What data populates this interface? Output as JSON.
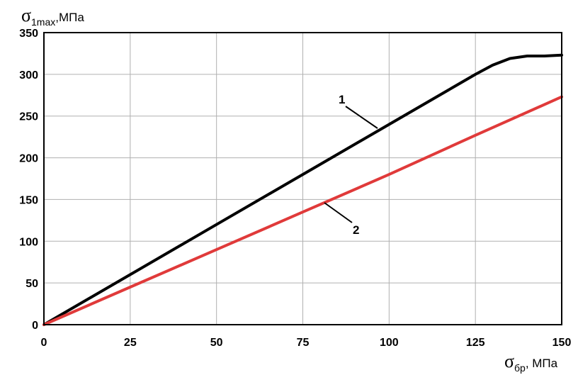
{
  "chart_data": {
    "type": "line",
    "ylabel": {
      "symbol": "σ",
      "subscript": "1max",
      "unit": ",МПа"
    },
    "xlabel": {
      "symbol": "σ",
      "subscript": "бр",
      "unit": ", МПа"
    },
    "xlim": [
      0,
      150
    ],
    "ylim": [
      0,
      350
    ],
    "x_ticks": [
      "0",
      "25",
      "50",
      "75",
      "100",
      "125",
      "150"
    ],
    "y_ticks": [
      "0",
      "50",
      "100",
      "150",
      "200",
      "250",
      "300",
      "350"
    ],
    "grid": true,
    "series": [
      {
        "name": "1",
        "color": "#000000",
        "points": [
          [
            0,
            0
          ],
          [
            25,
            60
          ],
          [
            50,
            120
          ],
          [
            75,
            180
          ],
          [
            100,
            240
          ],
          [
            120,
            288
          ],
          [
            125,
            300
          ],
          [
            130,
            311
          ],
          [
            135,
            319
          ],
          [
            140,
            322
          ],
          [
            145,
            322
          ],
          [
            150,
            323
          ]
        ]
      },
      {
        "name": "2",
        "color": "#e03a3a",
        "points": [
          [
            0,
            0
          ],
          [
            25,
            45
          ],
          [
            50,
            90
          ],
          [
            75,
            135
          ],
          [
            100,
            180
          ],
          [
            125,
            227
          ],
          [
            150,
            273
          ]
        ]
      }
    ],
    "labels": [
      {
        "text": "1",
        "series": 0
      },
      {
        "text": "2",
        "series": 1
      }
    ]
  }
}
